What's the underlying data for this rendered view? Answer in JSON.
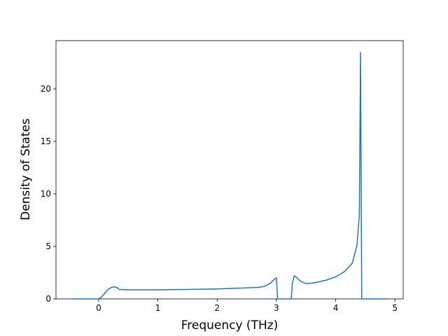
{
  "chart_data": {
    "type": "line",
    "xlabel": "Frequency (THz)",
    "ylabel": "Density of States",
    "xlim": [
      -0.72,
      5.14
    ],
    "ylim": [
      0,
      24.6
    ],
    "xticks": [
      0,
      1,
      2,
      3,
      4,
      5
    ],
    "yticks": [
      0,
      5,
      10,
      15,
      20
    ],
    "series": [
      {
        "color": "#1f77b4",
        "x": [
          -0.45,
          0,
          0.05,
          0.1,
          0.15,
          0.2,
          0.25,
          0.3,
          0.35,
          0.5,
          1.0,
          1.5,
          2.0,
          2.5,
          2.7,
          2.8,
          2.9,
          2.97,
          3.0,
          3.02,
          3.25,
          3.27,
          3.3,
          3.35,
          3.4,
          3.5,
          3.6,
          3.7,
          3.85,
          4.0,
          4.15,
          4.28,
          4.36,
          4.4,
          4.42,
          4.44,
          4.88
        ],
        "values": [
          0,
          0,
          0.2,
          0.5,
          0.85,
          1.05,
          1.15,
          1.1,
          0.9,
          0.87,
          0.87,
          0.9,
          0.95,
          1.05,
          1.1,
          1.2,
          1.5,
          1.9,
          2.0,
          0,
          0,
          1.5,
          2.2,
          2.0,
          1.7,
          1.45,
          1.5,
          1.6,
          1.8,
          2.1,
          2.6,
          3.4,
          5.1,
          8,
          23.5,
          0,
          0
        ]
      }
    ]
  }
}
